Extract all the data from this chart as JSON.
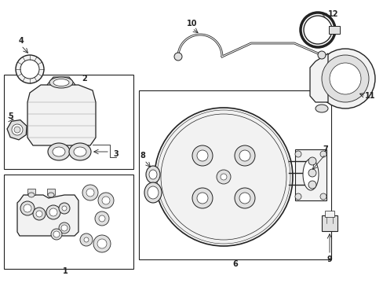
{
  "bg_color": "#ffffff",
  "line_color": "#222222",
  "label_color": "#000000",
  "lw": 0.9
}
